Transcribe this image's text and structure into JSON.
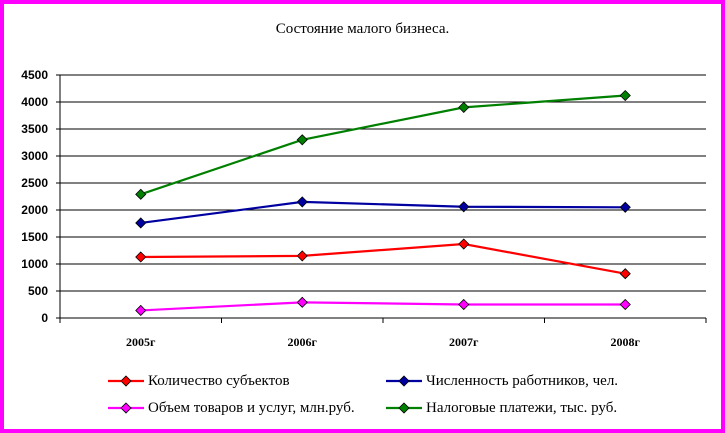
{
  "chart_data": {
    "type": "line",
    "title": "Состояние малого бизнеса.",
    "categories": [
      "2005г",
      "2006г",
      "2007г",
      "2008г"
    ],
    "ylim": [
      0,
      4500
    ],
    "yticks": [
      0,
      500,
      1000,
      1500,
      2000,
      2500,
      3000,
      3500,
      4000,
      4500
    ],
    "grid": true,
    "legend_position": "bottom",
    "series": [
      {
        "name": "Количество субъектов",
        "color": "#ff0000",
        "values": [
          1130,
          1150,
          1370,
          820
        ]
      },
      {
        "name": "Численность работников, чел.",
        "color": "#0000a0",
        "values": [
          1760,
          2150,
          2060,
          2050
        ]
      },
      {
        "name": "Объем товаров и услуг, млн.руб.",
        "color": "#ff00ff",
        "values": [
          140,
          290,
          250,
          250
        ]
      },
      {
        "name": "Налоговые платежи, тыс. руб.",
        "color": "#008000",
        "values": [
          2290,
          3300,
          3900,
          4120
        ]
      }
    ]
  },
  "colors": {
    "frame": "#ff00ff"
  }
}
